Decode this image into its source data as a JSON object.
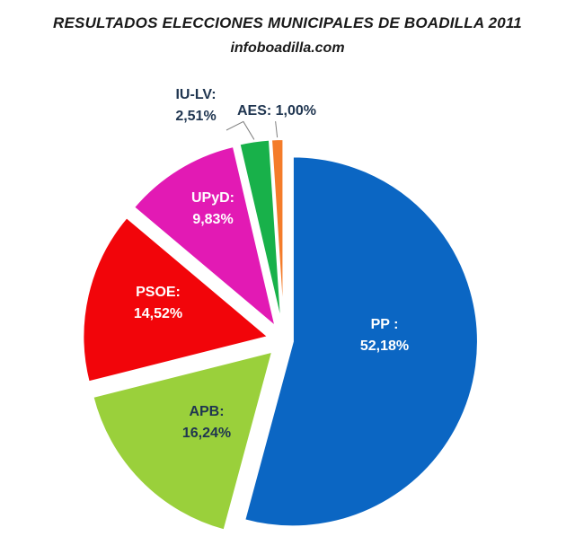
{
  "chart_data": {
    "type": "pie",
    "title": "RESULTADOS ELECCIONES MUNICIPALES DE BOADILLA 2011",
    "subtitle": "infoboadilla.com",
    "slices": [
      {
        "name": "PP",
        "label": "PP :",
        "value_text": "52,18%",
        "value": 52.18,
        "color": "#0b66c3",
        "text_color": "#ffffff"
      },
      {
        "name": "APB",
        "label": "APB:",
        "value_text": "16,24%",
        "value": 16.24,
        "color": "#9ad03b",
        "text_color": "#1f3550"
      },
      {
        "name": "PSOE",
        "label": "PSOE:",
        "value_text": "14,52%",
        "value": 14.52,
        "color": "#f2050a",
        "text_color": "#ffffff"
      },
      {
        "name": "UPyD",
        "label": "UPyD:",
        "value_text": "9,83%",
        "value": 9.83,
        "color": "#e21ab4",
        "text_color": "#ffffff"
      },
      {
        "name": "IU-LV",
        "label": "IU-LV:",
        "value_text": "2,51%",
        "value": 2.51,
        "color": "#18b14a",
        "text_color": "#1f3550"
      },
      {
        "name": "AES",
        "label": "AES:",
        "value_text": "1,00%",
        "value": 1.0,
        "color": "#f47c2a",
        "text_color": "#1f3550"
      }
    ]
  }
}
